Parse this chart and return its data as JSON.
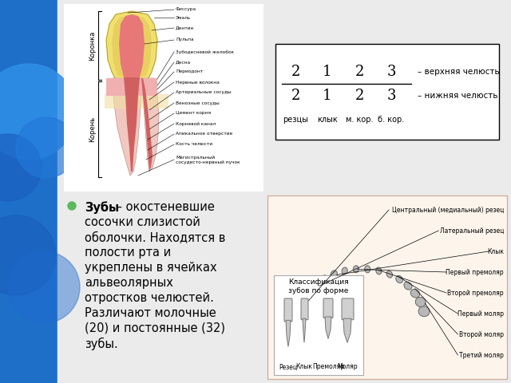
{
  "bg_color": "#e0e0e0",
  "left_panel_color": "#1a5fb4",
  "slide_bg": "#ebebeb",
  "bullet_color": "#5cb85c",
  "side_labels": [
    "Коронка",
    "Корень"
  ],
  "dental_formula_upper": [
    "2",
    "1",
    "2",
    "3"
  ],
  "dental_formula_lower": [
    "2",
    "1",
    "2",
    "3"
  ],
  "dental_formula_labels": [
    "резцы",
    "клык",
    "м. кор.",
    "б. кор."
  ],
  "upper_jaw_label": "– верхняя челюсть",
  "lower_jaw_label": "– нижняя челюсть",
  "tooth_anatomy_labels": [
    [
      "Фиссура",
      0
    ],
    [
      "Эмаль",
      1
    ],
    [
      "Дентин",
      1
    ],
    [
      "Пульпа",
      1
    ],
    [
      "Зубодесневой желобок",
      1
    ],
    [
      "Десна",
      1
    ],
    [
      "Периодонт",
      1
    ],
    [
      "Нервные волокна",
      1
    ],
    [
      "Артериальные сосуды",
      1
    ],
    [
      "Венозные сосуды",
      1
    ],
    [
      "Цемент корня",
      1
    ],
    [
      "Корневой канал",
      1
    ],
    [
      "Апикальное отверстие",
      1
    ],
    [
      "Кость челюсти",
      1
    ],
    [
      "Магистральный сосудисто-нервный пучок",
      1
    ]
  ],
  "teeth_diagram_labels": [
    "Центральный (медиальный) резец",
    "Латеральный резец",
    "Клык",
    "Первый премоляр",
    "Второй премоляр",
    "Первый моляр",
    "Второй моляр",
    "Третий моляр"
  ],
  "classify_label": "Классификация\nзубов по форме",
  "classify_tooth_labels": [
    "Резец",
    "Клык",
    "Премоляр",
    "Моляр"
  ],
  "bullet_lines": [
    [
      "Зубы",
      true
    ],
    [
      " – окостеневшие",
      false
    ],
    [
      "сосочки слизистой",
      false
    ],
    [
      "оболочки. Находятся в",
      false
    ],
    [
      "полости рта и",
      false
    ],
    [
      "укреплены в ячейках",
      false
    ],
    [
      "альвеолярных",
      false
    ],
    [
      "отростков челюстей.",
      false
    ],
    [
      "Различают молочные",
      false
    ],
    [
      "(20) и постоянные (32)",
      false
    ],
    [
      "зубы.",
      false
    ]
  ]
}
